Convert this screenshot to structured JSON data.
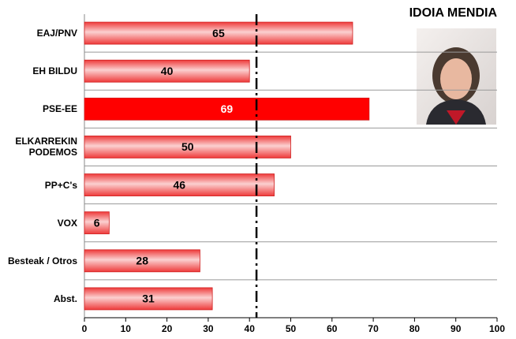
{
  "chart_data": {
    "type": "bar",
    "orientation": "horizontal",
    "title": "IDOIA MENDIA",
    "categories": [
      "EAJ/PNV",
      "EH BILDU",
      "PSE-EE",
      "ELKARREKIN PODEMOS",
      "PP+C's",
      "VOX",
      "Besteak / Otros",
      "Abst."
    ],
    "values": [
      65,
      40,
      69,
      50,
      46,
      6,
      28,
      31
    ],
    "colors": [
      "#ee3a3a",
      "#ee3a3a",
      "#ff0000",
      "#ee3a3a",
      "#ee3a3a",
      "#ee3a3a",
      "#ee3a3a",
      "#ee3a3a"
    ],
    "xlim": [
      0,
      100
    ],
    "xticks": [
      0,
      10,
      20,
      30,
      40,
      50,
      60,
      70,
      80,
      90,
      100
    ],
    "reference_line": 41.7
  }
}
